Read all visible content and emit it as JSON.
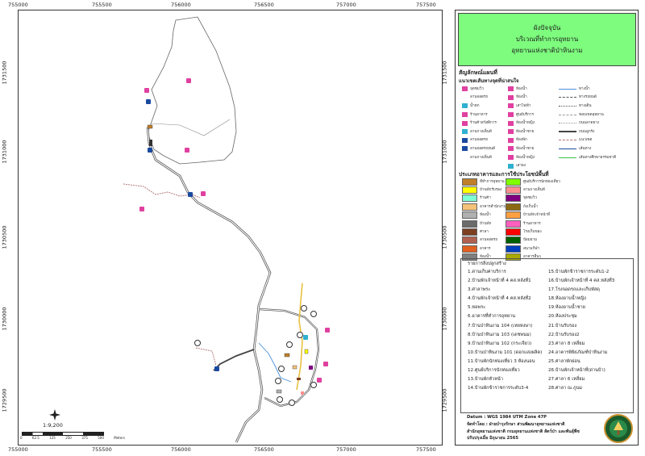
{
  "top_ticks": [
    "755000",
    "755500",
    "756000",
    "756500",
    "757000",
    "757500"
  ],
  "left_ticks": [
    "1731500",
    "1731000",
    "1730500",
    "1730000",
    "1729500"
  ],
  "title": {
    "line1": "ผังปัจจุบัน",
    "line2": "บริเวณที่ทำการอุทยาน",
    "line3": "อุทยานแห่งชาติป่าหินงาม"
  },
  "legend": {
    "symbols_heading": "สัญลักษณ์แผนที่",
    "routes_heading": "แนวเขตเส้นทางจุดที่น่าสนใจ",
    "symbols_col1": [
      "จุดชมวิว",
      "ลานจอดรถ",
      "น้ำตก",
      "ร้านอาหาร",
      "ร้านค้าสวัสดิการ",
      "ลานกางเต็นท์",
      "ลานจอดรถ",
      "ลานจอดรถยนต์",
      "ลานกางเต็นท์"
    ],
    "symbols_col2": [
      "ห้องน้ำ",
      "ห้องน้ำ",
      "เสาไฟฟ้า",
      "ศูนย์บริการ",
      "ห้องน้ำหญิง",
      "ห้องน้ำชาย",
      "ห้องพัก",
      "ห้องน้ำชาย",
      "ห้องน้ำหญิง",
      "เสาธง"
    ],
    "lines": [
      "ทางน้ำ",
      "ทางรถยนต์",
      "ทางเดิน",
      "ขอบเขตอุทยาน",
      "ถนนลาดยาง",
      "ถนนลูกรัง",
      "แนวเขต",
      "เส้นทาง",
      "เส้นทางศึกษาธรรมชาติ"
    ],
    "landuse_heading": "ประเภทอาคารและการใช้ประโยชน์พื้นที่",
    "landuse_col1": [
      "ที่ทำการอุทยาน",
      "บ้านพักรับรอง",
      "ร้านค้า",
      "อาคารสำนักงาน",
      "ห้องน้ำ",
      "บ้านพัก",
      "ศาลา",
      "ลานจอดรถ",
      "อาคาร",
      "ห้องน้ำ"
    ],
    "landuse_col2": [
      "ศูนย์บริการนักท่องเที่ยว",
      "ลานกางเต็นท์",
      "จุดชมวิว",
      "ถังเก็บน้ำ",
      "บ้านพักเจ้าหน้าที่",
      "ร้านอาหาร",
      "โรงเก็บของ",
      "ป้อมยาม",
      "สนามกีฬา",
      "อาคารอื่นๆ"
    ],
    "landuse_colors_col1": [
      "#c07f2a",
      "#ffff00",
      "#7fffd4",
      "#f4c27a",
      "#b0b0b0",
      "#6b6b6b",
      "#7b3f22",
      "#b06050",
      "#e06020",
      "#808080"
    ],
    "landuse_colors_col2": [
      "#7fff00",
      "#ff9090",
      "#800080",
      "#8b6914",
      "#ffa040",
      "#ff60c0",
      "#ff0000",
      "#006000",
      "#0040c0",
      "#aaaa00"
    ]
  },
  "buildings": {
    "heading": "รายการสิ่งปลูกสร้าง",
    "col1": [
      "1.ด่านเก็บค่าบริการ",
      "2.บ้านพักเจ้าหน้าที่ 4 คส.หลังที่1",
      "3.ศาลาพระ",
      "4.บ้านพักเจ้าหน้าที่ 4 คส.หลังที่2",
      "5.หอพระ",
      "6.อาคารที่ทำการอุทยาน",
      "7.บ้านป่าหินงาม 104 (เหยหงษา)",
      "8.บ้านป่าหินงาม 103 (เดชพนม)",
      "9.บ้านป่าหินงาม 102 (กระเจียว)",
      "10.บ้านป่าหินงาม 101 (ดอกแสงผลิค)",
      "11.บ้านพักนักท่องเที่ยว 3 ห้องนอน",
      "12.ศูนย์บริการนักท่องเที่ยว",
      "13.บ้านพักหัวหน้า",
      "14.บ้านพักข้าราชการระดับ3-4"
    ],
    "col2": [
      "15.บ้านพักข้าราชการระดับ1-2",
      "16.บ้านพักเจ้าหน้าที่ 4 คส.หลังที่3",
      "17.โรงจอดรถและเก็บพัสดุ",
      "18.ห้องอาบน้ำหญิง",
      "19.ห้องอาบน้ำชาย",
      "20.ห้องประชุม",
      "21.บ้านรับรอง",
      "22.บ้านรับรอง2",
      "23.ศาลา 8 เหลี่ยม",
      "24.อาคารพิพิธภัณฑ์ป่าหินงาม",
      "25.ศาลาพักผ่อน",
      "26.บ้านพักเจ้าหน้าที่(ด่านบ้า)",
      "27.ศาลา 6 เหลี่ยม",
      "28.ศาลา ณ ภูนม"
    ]
  },
  "footer": {
    "datum": "Datum : WGS 1984 UTM Zone 47P",
    "made_by": "จัดทำโดย : ฝ่ายบำรุงรักษา ส่วนพัฒนาอุทยานแห่งชาติ",
    "org": "สำนักอุทยานแห่งชาติ กรมอุทยานแห่งชาติ สัตว์ป่า และพันธุ์พืช",
    "updated": "ปรับปรุงเมื่อ มิถุนายน 2565"
  },
  "scale": {
    "ratio": "1:9,200",
    "ticks": [
      "0",
      "62.5",
      "125",
      "250",
      "375",
      "500"
    ],
    "unit": "Meters"
  }
}
